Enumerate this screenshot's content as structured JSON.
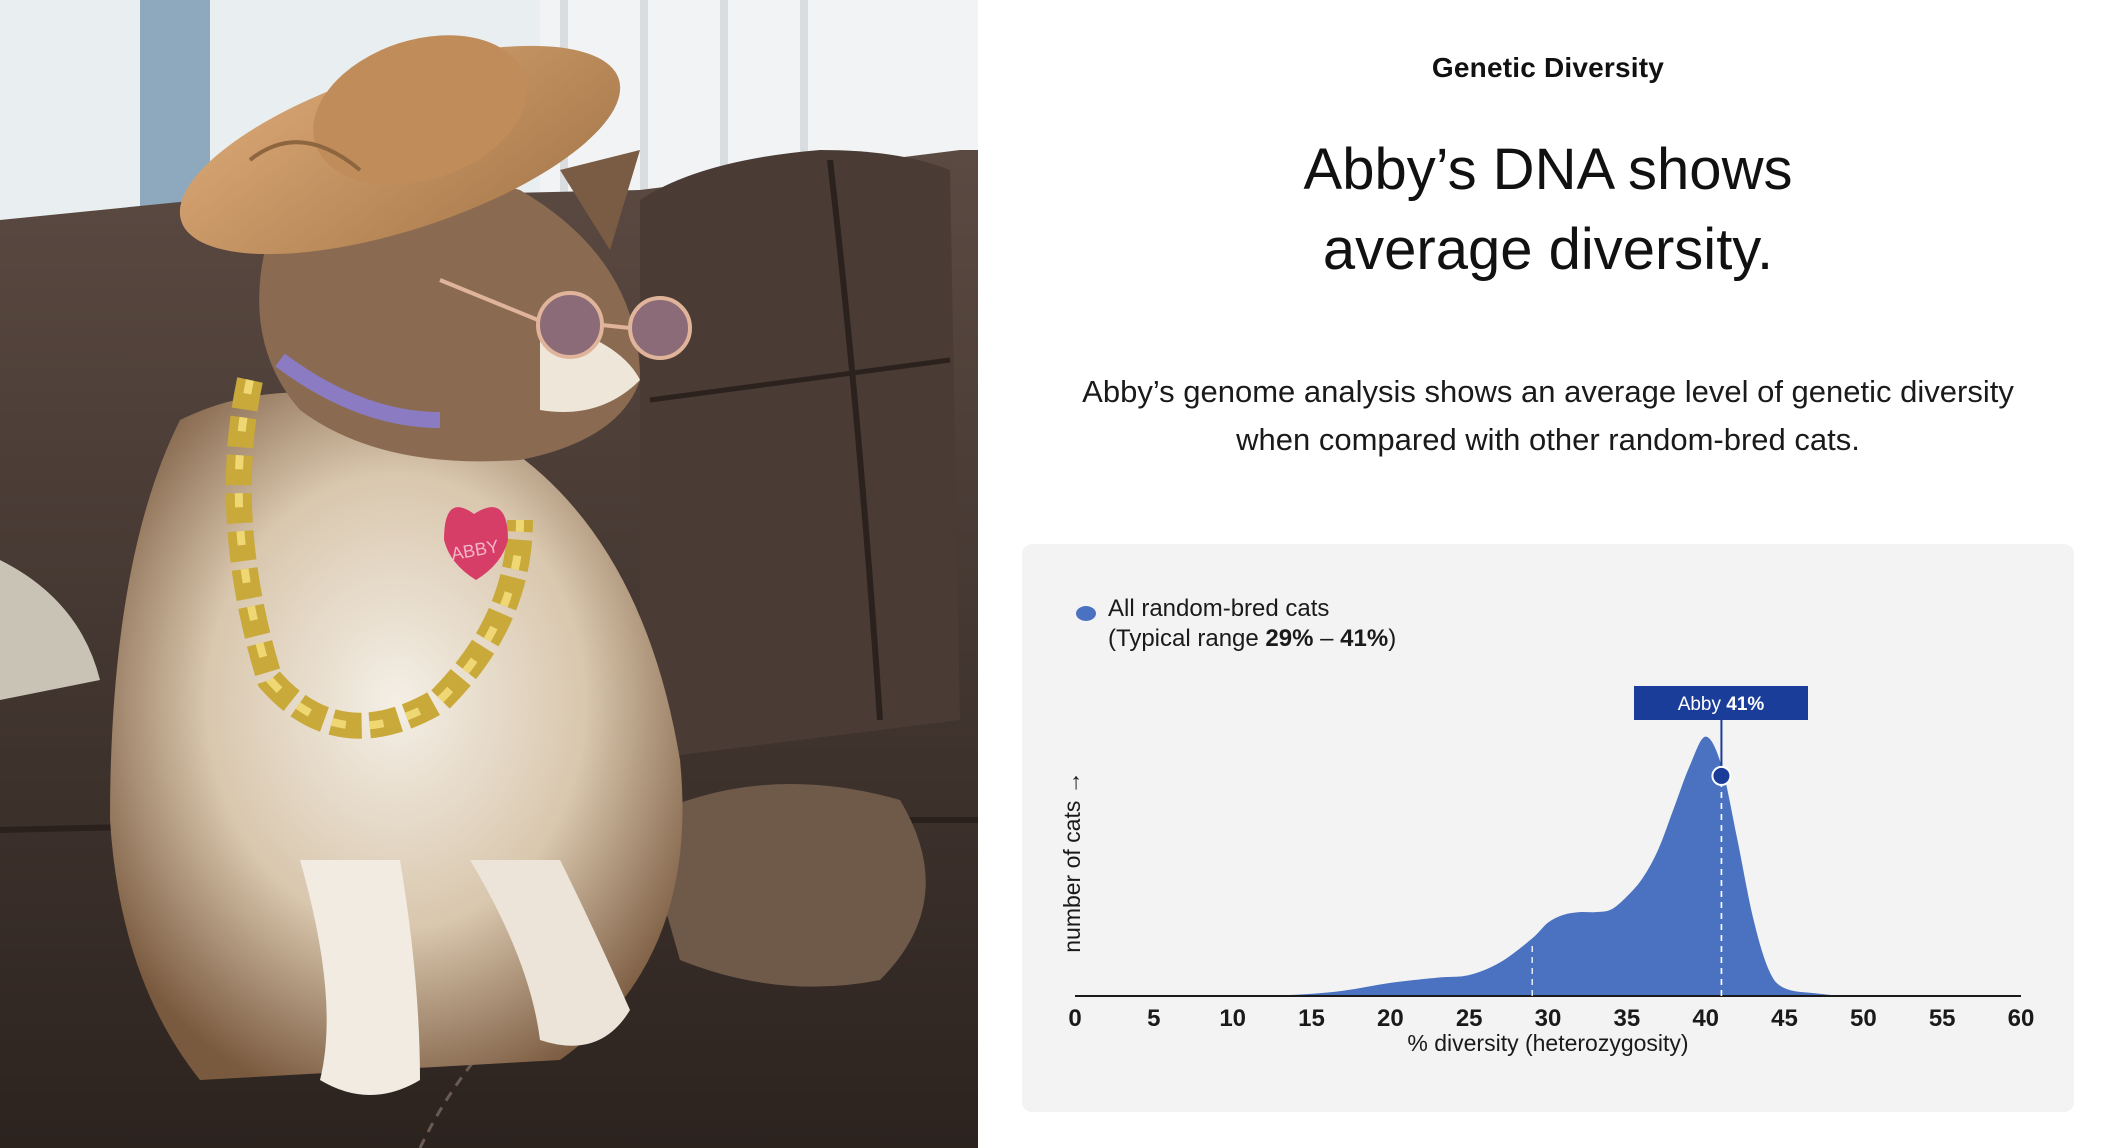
{
  "section_label": "Genetic Diversity",
  "headline": [
    "Abby’s DNA shows",
    "average diversity."
  ],
  "description": [
    "Abby’s genome analysis shows an average level of genetic diversity",
    "when compared with other random-bred cats."
  ],
  "photo": {
    "tag_text": "ABBY"
  },
  "legend": {
    "series_name": "All random-bred cats",
    "range_prefix": "(Typical range ",
    "range_low": "29%",
    "range_sep": " – ",
    "range_high": "41%",
    "range_suffix": ")"
  },
  "colors": {
    "area": "#4a72c0",
    "marker": "#1a3d9a",
    "label_bg": "#1a3d9a",
    "card": "#f3f3f3"
  },
  "chart_data": {
    "type": "area",
    "xlabel": "% diversity (heterozygosity)",
    "ylabel": "number of cats →",
    "xlim": [
      0,
      60
    ],
    "ylim": [
      0,
      1
    ],
    "x_ticks": [
      "0",
      "5",
      "10",
      "15",
      "20",
      "25",
      "30",
      "35",
      "40",
      "45",
      "50",
      "55",
      "60"
    ],
    "grid": false,
    "legend_position": "top-left",
    "series": [
      {
        "name": "All random-bred cats",
        "x": [
          0,
          10,
          14,
          17,
          20,
          23,
          25,
          27,
          29,
          30,
          31,
          32,
          33,
          34,
          35,
          36,
          37,
          38,
          39,
          40,
          41,
          42,
          43,
          44,
          45,
          47,
          50,
          60
        ],
        "y": [
          0,
          0,
          0.005,
          0.02,
          0.05,
          0.07,
          0.08,
          0.13,
          0.22,
          0.28,
          0.31,
          0.32,
          0.32,
          0.33,
          0.38,
          0.45,
          0.56,
          0.72,
          0.88,
          0.99,
          0.88,
          0.6,
          0.3,
          0.1,
          0.03,
          0.01,
          0,
          0
        ]
      }
    ],
    "typical_range": [
      29,
      41
    ],
    "annotation": {
      "label_prefix": "Abby ",
      "label_value": "41%",
      "x": 41,
      "y": 0.84
    }
  }
}
